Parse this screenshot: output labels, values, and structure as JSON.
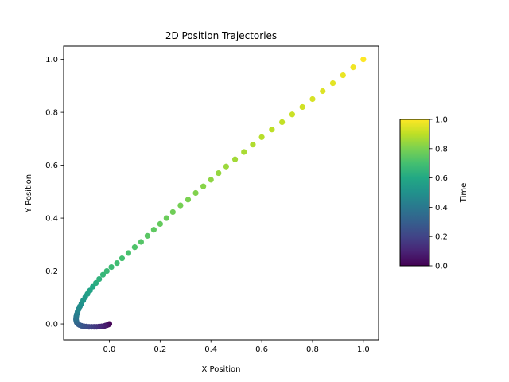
{
  "chart_data": {
    "type": "scatter",
    "title": "2D Position Trajectories",
    "xlabel": "X Position",
    "ylabel": "Y Position",
    "xlim": [
      -0.18,
      1.06
    ],
    "ylim": [
      -0.06,
      1.05
    ],
    "xticks": [
      "0.0",
      "0.2",
      "0.4",
      "0.6",
      "0.8",
      "1.0"
    ],
    "yticks": [
      "0.0",
      "0.2",
      "0.4",
      "0.6",
      "0.8",
      "1.0"
    ],
    "grid": false,
    "colorbar": {
      "label": "Time",
      "colormap": "viridis",
      "range": [
        0,
        1
      ],
      "ticks": [
        "0.0",
        "0.2",
        "0.4",
        "0.6",
        "0.8",
        "1.0"
      ]
    },
    "point_color_value": "time",
    "points": [
      {
        "x": 0.0,
        "y": 0.0,
        "t": 0.0
      },
      {
        "x": -0.005,
        "y": -0.003,
        "t": 0.02
      },
      {
        "x": -0.01,
        "y": -0.005,
        "t": 0.04
      },
      {
        "x": -0.015,
        "y": -0.006,
        "t": 0.06
      },
      {
        "x": -0.02,
        "y": -0.008,
        "t": 0.08
      },
      {
        "x": -0.03,
        "y": -0.009,
        "t": 0.1
      },
      {
        "x": -0.04,
        "y": -0.01,
        "t": 0.12
      },
      {
        "x": -0.05,
        "y": -0.011,
        "t": 0.14
      },
      {
        "x": -0.06,
        "y": -0.011,
        "t": 0.16
      },
      {
        "x": -0.07,
        "y": -0.011,
        "t": 0.18
      },
      {
        "x": -0.08,
        "y": -0.011,
        "t": 0.2
      },
      {
        "x": -0.09,
        "y": -0.01,
        "t": 0.22
      },
      {
        "x": -0.1,
        "y": -0.009,
        "t": 0.24
      },
      {
        "x": -0.11,
        "y": -0.007,
        "t": 0.26
      },
      {
        "x": -0.118,
        "y": -0.004,
        "t": 0.28
      },
      {
        "x": -0.124,
        "y": 0.0,
        "t": 0.3
      },
      {
        "x": -0.128,
        "y": 0.005,
        "t": 0.32
      },
      {
        "x": -0.13,
        "y": 0.01,
        "t": 0.34
      },
      {
        "x": -0.131,
        "y": 0.016,
        "t": 0.36
      },
      {
        "x": -0.131,
        "y": 0.022,
        "t": 0.38
      },
      {
        "x": -0.13,
        "y": 0.029,
        "t": 0.4
      },
      {
        "x": -0.128,
        "y": 0.037,
        "t": 0.42
      },
      {
        "x": -0.125,
        "y": 0.046,
        "t": 0.44
      },
      {
        "x": -0.121,
        "y": 0.056,
        "t": 0.46
      },
      {
        "x": -0.116,
        "y": 0.066,
        "t": 0.48
      },
      {
        "x": -0.11,
        "y": 0.077,
        "t": 0.5
      },
      {
        "x": -0.103,
        "y": 0.089,
        "t": 0.52
      },
      {
        "x": -0.095,
        "y": 0.101,
        "t": 0.54
      },
      {
        "x": -0.086,
        "y": 0.114,
        "t": 0.56
      },
      {
        "x": -0.076,
        "y": 0.127,
        "t": 0.58
      },
      {
        "x": -0.065,
        "y": 0.141,
        "t": 0.6
      },
      {
        "x": -0.053,
        "y": 0.155,
        "t": 0.62
      },
      {
        "x": -0.04,
        "y": 0.17,
        "t": 0.64
      },
      {
        "x": -0.025,
        "y": 0.186,
        "t": 0.66
      },
      {
        "x": -0.01,
        "y": 0.2,
        "t": 0.67
      },
      {
        "x": 0.008,
        "y": 0.215,
        "t": 0.68
      },
      {
        "x": 0.03,
        "y": 0.23,
        "t": 0.69
      },
      {
        "x": 0.05,
        "y": 0.248,
        "t": 0.7
      },
      {
        "x": 0.075,
        "y": 0.268,
        "t": 0.71
      },
      {
        "x": 0.1,
        "y": 0.29,
        "t": 0.72
      },
      {
        "x": 0.125,
        "y": 0.31,
        "t": 0.73
      },
      {
        "x": 0.15,
        "y": 0.333,
        "t": 0.74
      },
      {
        "x": 0.175,
        "y": 0.356,
        "t": 0.75
      },
      {
        "x": 0.2,
        "y": 0.378,
        "t": 0.76
      },
      {
        "x": 0.225,
        "y": 0.4,
        "t": 0.77
      },
      {
        "x": 0.25,
        "y": 0.423,
        "t": 0.78
      },
      {
        "x": 0.28,
        "y": 0.448,
        "t": 0.79
      },
      {
        "x": 0.31,
        "y": 0.47,
        "t": 0.8
      },
      {
        "x": 0.34,
        "y": 0.495,
        "t": 0.81
      },
      {
        "x": 0.37,
        "y": 0.52,
        "t": 0.82
      },
      {
        "x": 0.4,
        "y": 0.545,
        "t": 0.83
      },
      {
        "x": 0.43,
        "y": 0.57,
        "t": 0.84
      },
      {
        "x": 0.46,
        "y": 0.595,
        "t": 0.85
      },
      {
        "x": 0.495,
        "y": 0.622,
        "t": 0.86
      },
      {
        "x": 0.53,
        "y": 0.65,
        "t": 0.87
      },
      {
        "x": 0.565,
        "y": 0.678,
        "t": 0.88
      },
      {
        "x": 0.6,
        "y": 0.706,
        "t": 0.89
      },
      {
        "x": 0.64,
        "y": 0.735,
        "t": 0.9
      },
      {
        "x": 0.68,
        "y": 0.763,
        "t": 0.91
      },
      {
        "x": 0.72,
        "y": 0.792,
        "t": 0.92
      },
      {
        "x": 0.76,
        "y": 0.82,
        "t": 0.93
      },
      {
        "x": 0.8,
        "y": 0.85,
        "t": 0.94
      },
      {
        "x": 0.84,
        "y": 0.88,
        "t": 0.95
      },
      {
        "x": 0.88,
        "y": 0.91,
        "t": 0.96
      },
      {
        "x": 0.92,
        "y": 0.94,
        "t": 0.97
      },
      {
        "x": 0.96,
        "y": 0.97,
        "t": 0.98
      },
      {
        "x": 1.0,
        "y": 1.0,
        "t": 1.0
      }
    ]
  }
}
